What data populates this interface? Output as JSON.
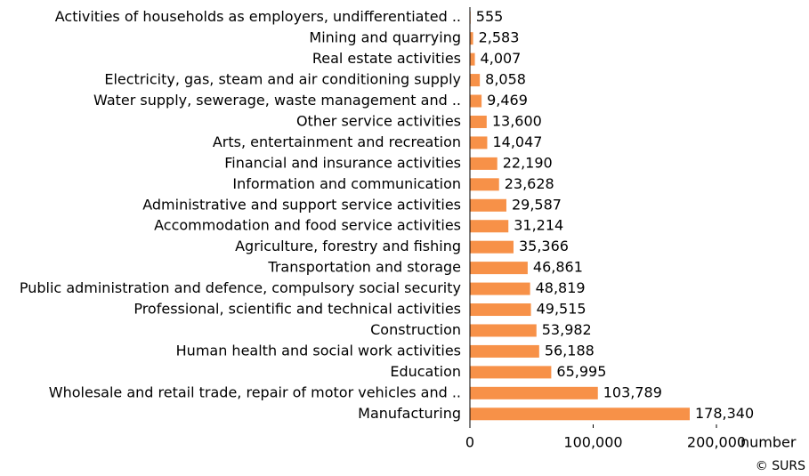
{
  "chart_data": {
    "type": "barh",
    "categories": [
      "Activities of households as employers, undifferentiated ..",
      "Mining and quarrying",
      "Real estate activities",
      "Electricity,  gas, steam and air conditioning supply",
      "Water supply, sewerage, waste management and ..",
      "Other service activities",
      "Arts, entertainment and recreation",
      "Financial and insurance activities",
      "Information and communication",
      "Administrative and support service activities",
      "Accommodation and food service activities",
      "Agriculture, forestry and fishing",
      "Transportation and storage",
      "Public administration and defence, compulsory social security",
      "Professional, scientific and technical activities",
      "Construction",
      "Human health and social work activities",
      "Education",
      "Wholesale and retail trade, repair of motor vehicles and ..",
      "Manufacturing"
    ],
    "values": [
      555,
      2583,
      4007,
      8058,
      9469,
      13600,
      14047,
      22190,
      23628,
      29587,
      31214,
      35366,
      46861,
      48819,
      49515,
      53982,
      56188,
      65995,
      103789,
      178340
    ],
    "value_labels": [
      "555",
      "2,583",
      "4,007",
      "8,058",
      "9,469",
      "13,600",
      "14,047",
      "22,190",
      "23,628",
      "29,587",
      "31,214",
      "35,366",
      "46,861",
      "48,819",
      "49,515",
      "53,982",
      "56,188",
      "65,995",
      "103,789",
      "178,340"
    ],
    "color": "#f79148",
    "xlim": [
      0,
      200000
    ],
    "xticks": [
      0,
      {
        "value": 100000,
        "label": "100,000"
      },
      {
        "value": 200000,
        "label": "200,000"
      }
    ],
    "x_label": "number",
    "source": "© SURS"
  }
}
